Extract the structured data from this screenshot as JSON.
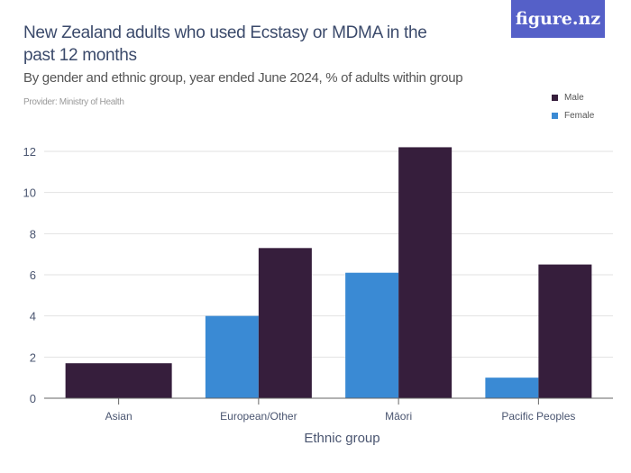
{
  "title": "New Zealand adults who used Ecstasy or MDMA in the past 12 months",
  "subtitle": "By gender and ethnic group, year ended June 2024, % of adults within group",
  "provider": "Provider: Ministry of Health",
  "logo": "figure.nz",
  "chart_data": {
    "type": "bar",
    "title": "New Zealand adults who used Ecstasy or MDMA in the past 12 months",
    "xlabel": "Ethnic group",
    "ylabel": "",
    "ylim": [
      0,
      12
    ],
    "yticks": [
      0,
      2,
      4,
      6,
      8,
      10,
      12
    ],
    "grid": true,
    "legend_position": "top-right",
    "categories": [
      "Asian",
      "European/Other",
      "Māori",
      "Pacific Peoples"
    ],
    "series": [
      {
        "name": "Female",
        "color": "#3a8ad4",
        "values": [
          null,
          4.0,
          6.1,
          1.0
        ]
      },
      {
        "name": "Male",
        "color": "#361e3c",
        "values": [
          1.7,
          7.3,
          12.2,
          6.5
        ]
      }
    ]
  }
}
